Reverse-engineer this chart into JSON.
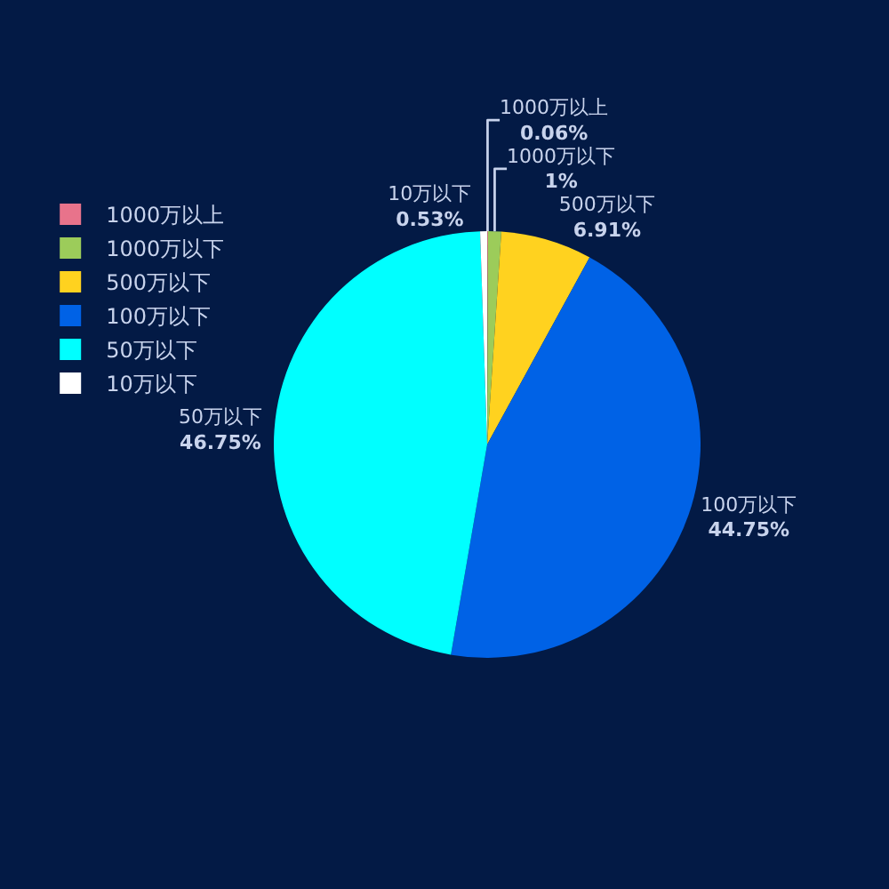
{
  "chart_data": {
    "type": "pie",
    "categories": [
      "1000万以上",
      "1000万以下",
      "500万以下",
      "100万以下",
      "50万以下",
      "10万以下"
    ],
    "values": [
      0.06,
      1,
      6.91,
      44.75,
      46.75,
      0.53
    ],
    "value_labels": [
      "0.06%",
      "1%",
      "6.91%",
      "44.75%",
      "46.75%",
      "0.53%"
    ],
    "colors": [
      "#e8738b",
      "#9ccc5a",
      "#ffd21f",
      "#0062e6",
      "#00ffff",
      "#ffffff"
    ],
    "legend": "left"
  }
}
